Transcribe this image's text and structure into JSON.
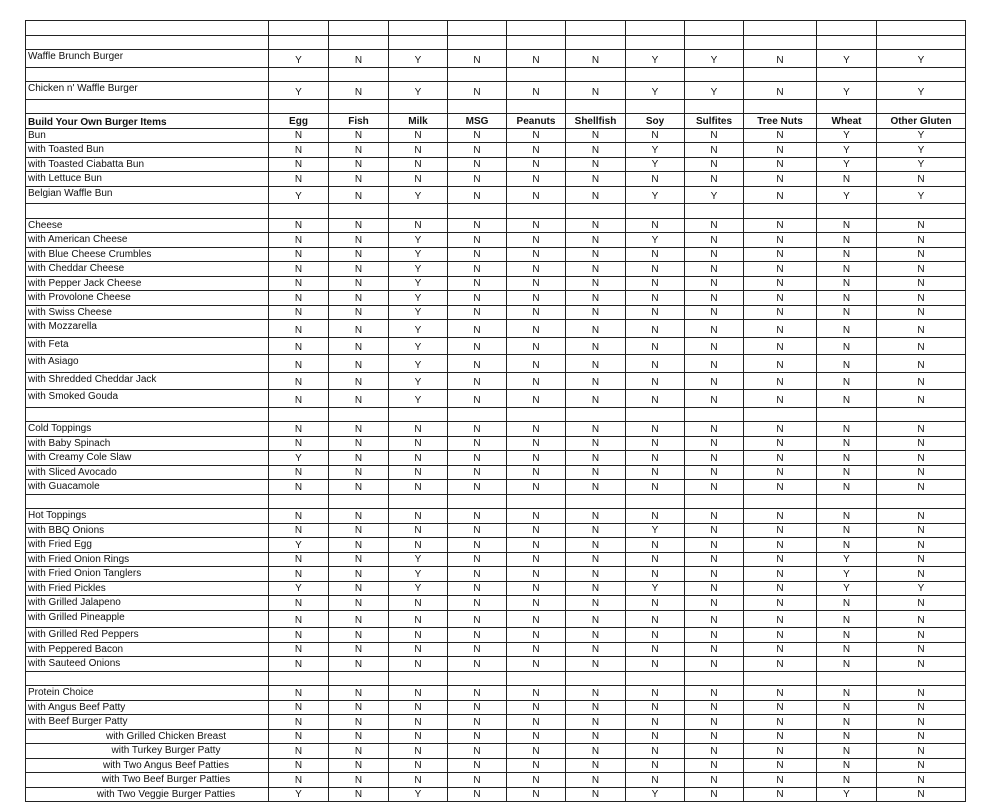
{
  "columns": [
    "Build Your Own Burger Items",
    "Egg",
    "Fish",
    "Milk",
    "MSG",
    "Peanuts",
    "Shellfish",
    "Soy",
    "Sulfites",
    "Tree Nuts",
    "Wheat",
    "Other Gluten"
  ],
  "rows": [
    {
      "label": "",
      "values": [
        "",
        "",
        "",
        "",
        "",
        "",
        "",
        "",
        "",
        "",
        ""
      ]
    },
    {
      "label": "",
      "values": [
        "",
        "",
        "",
        "",
        "",
        "",
        "",
        "",
        "",
        "",
        ""
      ]
    },
    {
      "label": "Waffle Brunch Burger",
      "values": [
        "Y",
        "N",
        "Y",
        "N",
        "N",
        "N",
        "Y",
        "Y",
        "N",
        "Y",
        "Y"
      ]
    },
    {
      "label": "",
      "values": [
        "",
        "",
        "",
        "",
        "",
        "",
        "",
        "",
        "",
        "",
        ""
      ]
    },
    {
      "label": "Chicken n' Waffle Burger",
      "values": [
        "Y",
        "N",
        "Y",
        "N",
        "N",
        "N",
        "Y",
        "Y",
        "N",
        "Y",
        "Y"
      ]
    },
    {
      "label": "",
      "values": [
        "",
        "",
        "",
        "",
        "",
        "",
        "",
        "",
        "",
        "",
        ""
      ]
    },
    {
      "header": true
    },
    {
      "label": "Bun",
      "values": [
        "N",
        "N",
        "N",
        "N",
        "N",
        "N",
        "N",
        "N",
        "N",
        "Y",
        "Y"
      ]
    },
    {
      "label": "with Toasted Bun",
      "values": [
        "N",
        "N",
        "N",
        "N",
        "N",
        "N",
        "Y",
        "N",
        "N",
        "Y",
        "Y"
      ]
    },
    {
      "label": "with Toasted Ciabatta Bun",
      "values": [
        "N",
        "N",
        "N",
        "N",
        "N",
        "N",
        "Y",
        "N",
        "N",
        "Y",
        "Y"
      ]
    },
    {
      "label": "with Lettuce Bun",
      "values": [
        "N",
        "N",
        "N",
        "N",
        "N",
        "N",
        "N",
        "N",
        "N",
        "N",
        "N"
      ]
    },
    {
      "label": "Belgian Waffle Bun",
      "values": [
        "Y",
        "N",
        "Y",
        "N",
        "N",
        "N",
        "Y",
        "Y",
        "N",
        "Y",
        "Y"
      ]
    },
    {
      "label": "",
      "values": [
        "",
        "",
        "",
        "",
        "",
        "",
        "",
        "",
        "",
        "",
        ""
      ]
    },
    {
      "label": "Cheese",
      "values": [
        "N",
        "N",
        "N",
        "N",
        "N",
        "N",
        "N",
        "N",
        "N",
        "N",
        "N"
      ]
    },
    {
      "label": "with American Cheese",
      "values": [
        "N",
        "N",
        "Y",
        "N",
        "N",
        "N",
        "Y",
        "N",
        "N",
        "N",
        "N"
      ]
    },
    {
      "label": "with Blue Cheese Crumbles",
      "values": [
        "N",
        "N",
        "Y",
        "N",
        "N",
        "N",
        "N",
        "N",
        "N",
        "N",
        "N"
      ]
    },
    {
      "label": "with Cheddar Cheese",
      "values": [
        "N",
        "N",
        "Y",
        "N",
        "N",
        "N",
        "N",
        "N",
        "N",
        "N",
        "N"
      ]
    },
    {
      "label": "with Pepper Jack Cheese",
      "values": [
        "N",
        "N",
        "Y",
        "N",
        "N",
        "N",
        "N",
        "N",
        "N",
        "N",
        "N"
      ]
    },
    {
      "label": "with Provolone Cheese",
      "values": [
        "N",
        "N",
        "Y",
        "N",
        "N",
        "N",
        "N",
        "N",
        "N",
        "N",
        "N"
      ]
    },
    {
      "label": "with Swiss Cheese",
      "values": [
        "N",
        "N",
        "Y",
        "N",
        "N",
        "N",
        "N",
        "N",
        "N",
        "N",
        "N"
      ]
    },
    {
      "label": "with Mozzarella",
      "values": [
        "N",
        "N",
        "Y",
        "N",
        "N",
        "N",
        "N",
        "N",
        "N",
        "N",
        "N"
      ]
    },
    {
      "label": "with Feta",
      "values": [
        "N",
        "N",
        "Y",
        "N",
        "N",
        "N",
        "N",
        "N",
        "N",
        "N",
        "N"
      ]
    },
    {
      "label": "with Asiago",
      "values": [
        "N",
        "N",
        "Y",
        "N",
        "N",
        "N",
        "N",
        "N",
        "N",
        "N",
        "N"
      ]
    },
    {
      "label": "with Shredded Cheddar Jack",
      "values": [
        "N",
        "N",
        "Y",
        "N",
        "N",
        "N",
        "N",
        "N",
        "N",
        "N",
        "N"
      ]
    },
    {
      "label": "with Smoked Gouda",
      "values": [
        "N",
        "N",
        "Y",
        "N",
        "N",
        "N",
        "N",
        "N",
        "N",
        "N",
        "N"
      ]
    },
    {
      "label": "",
      "values": [
        "",
        "",
        "",
        "",
        "",
        "",
        "",
        "",
        "",
        "",
        ""
      ]
    },
    {
      "label": "Cold Toppings",
      "values": [
        "N",
        "N",
        "N",
        "N",
        "N",
        "N",
        "N",
        "N",
        "N",
        "N",
        "N"
      ]
    },
    {
      "label": "with Baby Spinach",
      "values": [
        "N",
        "N",
        "N",
        "N",
        "N",
        "N",
        "N",
        "N",
        "N",
        "N",
        "N"
      ]
    },
    {
      "label": "with Creamy Cole Slaw",
      "values": [
        "Y",
        "N",
        "N",
        "N",
        "N",
        "N",
        "N",
        "N",
        "N",
        "N",
        "N"
      ]
    },
    {
      "label": "with Sliced Avocado",
      "values": [
        "N",
        "N",
        "N",
        "N",
        "N",
        "N",
        "N",
        "N",
        "N",
        "N",
        "N"
      ]
    },
    {
      "label": "with Guacamole",
      "values": [
        "N",
        "N",
        "N",
        "N",
        "N",
        "N",
        "N",
        "N",
        "N",
        "N",
        "N"
      ]
    },
    {
      "label": "",
      "values": [
        "",
        "",
        "",
        "",
        "",
        "",
        "",
        "",
        "",
        "",
        ""
      ]
    },
    {
      "label": "Hot Toppings",
      "values": [
        "N",
        "N",
        "N",
        "N",
        "N",
        "N",
        "N",
        "N",
        "N",
        "N",
        "N"
      ]
    },
    {
      "label": "with BBQ Onions",
      "values": [
        "N",
        "N",
        "N",
        "N",
        "N",
        "N",
        "Y",
        "N",
        "N",
        "N",
        "N"
      ]
    },
    {
      "label": "with Fried Egg",
      "values": [
        "Y",
        "N",
        "N",
        "N",
        "N",
        "N",
        "N",
        "N",
        "N",
        "N",
        "N"
      ]
    },
    {
      "label": "with Fried Onion Rings",
      "values": [
        "N",
        "N",
        "Y",
        "N",
        "N",
        "N",
        "N",
        "N",
        "N",
        "Y",
        "N"
      ]
    },
    {
      "label": "with Fried Onion Tanglers",
      "values": [
        "N",
        "N",
        "Y",
        "N",
        "N",
        "N",
        "N",
        "N",
        "N",
        "Y",
        "N"
      ]
    },
    {
      "label": "with Fried Pickles",
      "values": [
        "Y",
        "N",
        "Y",
        "N",
        "N",
        "N",
        "Y",
        "N",
        "N",
        "Y",
        "Y"
      ]
    },
    {
      "label": "with Grilled Jalapeno",
      "values": [
        "N",
        "N",
        "N",
        "N",
        "N",
        "N",
        "N",
        "N",
        "N",
        "N",
        "N"
      ]
    },
    {
      "label": "with Grilled Pineapple",
      "values": [
        "N",
        "N",
        "N",
        "N",
        "N",
        "N",
        "N",
        "N",
        "N",
        "N",
        "N"
      ]
    },
    {
      "label": "with Grilled Red Peppers",
      "values": [
        "N",
        "N",
        "N",
        "N",
        "N",
        "N",
        "N",
        "N",
        "N",
        "N",
        "N"
      ]
    },
    {
      "label": "with Peppered Bacon",
      "values": [
        "N",
        "N",
        "N",
        "N",
        "N",
        "N",
        "N",
        "N",
        "N",
        "N",
        "N"
      ]
    },
    {
      "label": "with Sauteed Onions",
      "values": [
        "N",
        "N",
        "N",
        "N",
        "N",
        "N",
        "N",
        "N",
        "N",
        "N",
        "N"
      ]
    },
    {
      "label": "",
      "values": [
        "",
        "",
        "",
        "",
        "",
        "",
        "",
        "",
        "",
        "",
        ""
      ]
    },
    {
      "label": "Protein Choice",
      "values": [
        "N",
        "N",
        "N",
        "N",
        "N",
        "N",
        "N",
        "N",
        "N",
        "N",
        "N"
      ]
    },
    {
      "label": "with Angus Beef Patty",
      "values": [
        "N",
        "N",
        "N",
        "N",
        "N",
        "N",
        "N",
        "N",
        "N",
        "N",
        "N"
      ]
    },
    {
      "label": "with Beef Burger Patty",
      "values": [
        "N",
        "N",
        "N",
        "N",
        "N",
        "N",
        "N",
        "N",
        "N",
        "N",
        "N"
      ]
    },
    {
      "label": "with Grilled Chicken Breast",
      "values": [
        "N",
        "N",
        "N",
        "N",
        "N",
        "N",
        "N",
        "N",
        "N",
        "N",
        "N"
      ]
    },
    {
      "label": "with Turkey Burger Patty",
      "values": [
        "N",
        "N",
        "N",
        "N",
        "N",
        "N",
        "N",
        "N",
        "N",
        "N",
        "N"
      ]
    },
    {
      "label": "with Two Angus Beef Patties",
      "values": [
        "N",
        "N",
        "N",
        "N",
        "N",
        "N",
        "N",
        "N",
        "N",
        "N",
        "N"
      ]
    },
    {
      "label": "with Two Beef Burger Patties",
      "values": [
        "N",
        "N",
        "N",
        "N",
        "N",
        "N",
        "N",
        "N",
        "N",
        "N",
        "N"
      ]
    },
    {
      "label": "with Two Veggie Burger Patties",
      "values": [
        "Y",
        "N",
        "Y",
        "N",
        "N",
        "N",
        "Y",
        "N",
        "N",
        "Y",
        "N"
      ]
    }
  ]
}
